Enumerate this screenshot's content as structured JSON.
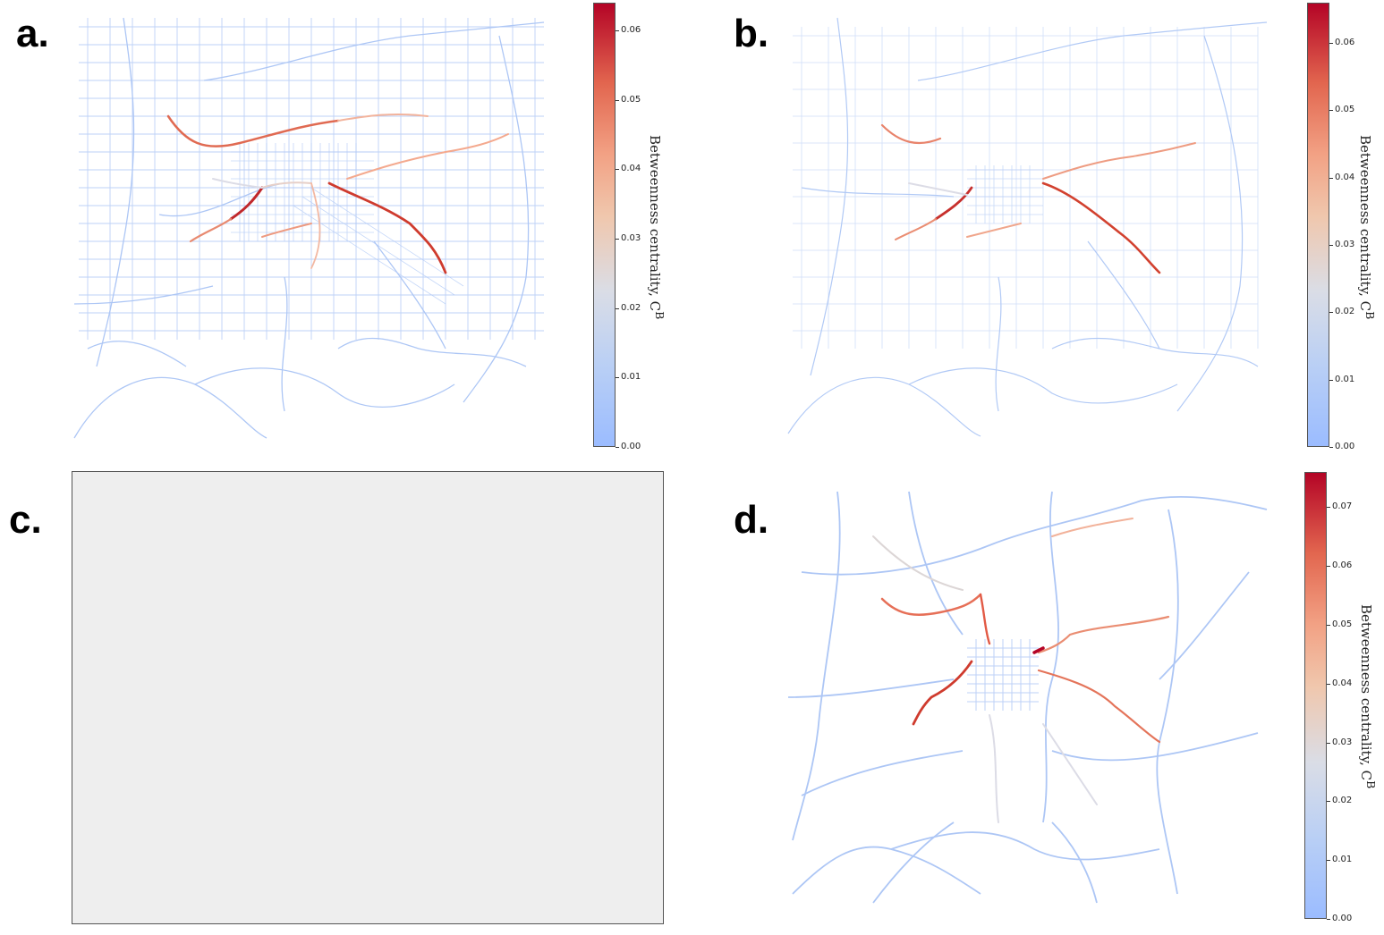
{
  "panels": [
    {
      "letter": "a.",
      "has_map": true
    },
    {
      "letter": "b.",
      "has_map": true
    },
    {
      "letter": "c.",
      "has_map": false
    },
    {
      "letter": "d.",
      "has_map": true
    }
  ],
  "colorbars": [
    {
      "ticks": [
        "0.00",
        "0.01",
        "0.02",
        "0.03",
        "0.04",
        "0.05",
        "0.06"
      ],
      "max": 0.064,
      "label_main": "Betweenness centrality, C",
      "label_sup": "B"
    },
    {
      "ticks": [
        "0.00",
        "0.01",
        "0.02",
        "0.03",
        "0.04",
        "0.05",
        "0.06"
      ],
      "max": 0.066,
      "label_main": "Betweenness centrality, C",
      "label_sup": "B"
    },
    {
      "ticks": [
        "0.00",
        "0.01",
        "0.02",
        "0.03",
        "0.04",
        "0.05",
        "0.06",
        "0.07"
      ],
      "max": 0.076,
      "label_main": "Betweenness centrality, C",
      "label_sup": "B"
    }
  ],
  "colors": {
    "low": "#9bbcff",
    "mid": "#dadde6",
    "high": "#b40426",
    "orange": "#f08a6a",
    "red": "#d4402f"
  }
}
